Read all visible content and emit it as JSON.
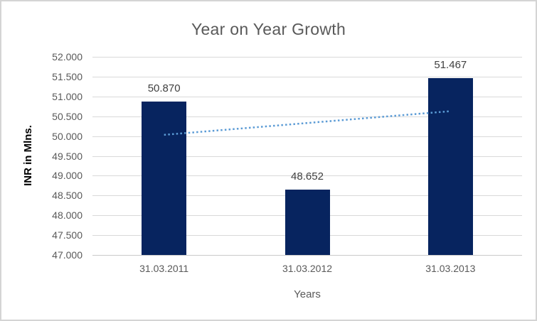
{
  "chart_data": {
    "type": "bar",
    "title": "Year on Year Growth",
    "xlabel": "Years",
    "ylabel": "INR in Mlns.",
    "categories": [
      "31.03.2011",
      "31.03.2012",
      "31.03.2013"
    ],
    "values": [
      50.87,
      48.652,
      51.467
    ],
    "value_labels": [
      "50.870",
      "48.652",
      "51.467"
    ],
    "ylim": [
      47.0,
      52.0
    ],
    "ytick_step": 0.5,
    "ytick_labels": [
      "52.000",
      "51.500",
      "51.000",
      "50.500",
      "50.000",
      "49.500",
      "49.000",
      "48.500",
      "48.000",
      "47.500",
      "47.000"
    ],
    "grid": true,
    "legend": "none",
    "trendline": {
      "type": "linear",
      "style": "dotted",
      "start_value": 50.031,
      "end_value": 50.628
    }
  },
  "colors": {
    "bar": "#07245f",
    "gridline": "#d9d9d9",
    "axis_line": "#c9c9c9",
    "title_text": "#595959",
    "tick_text": "#595959",
    "data_label_text": "#404040",
    "y_axis_title_text": "#000000",
    "trendline": "#5b9bd5",
    "chart_border": "#d4d4d4",
    "background": "#ffffff"
  }
}
